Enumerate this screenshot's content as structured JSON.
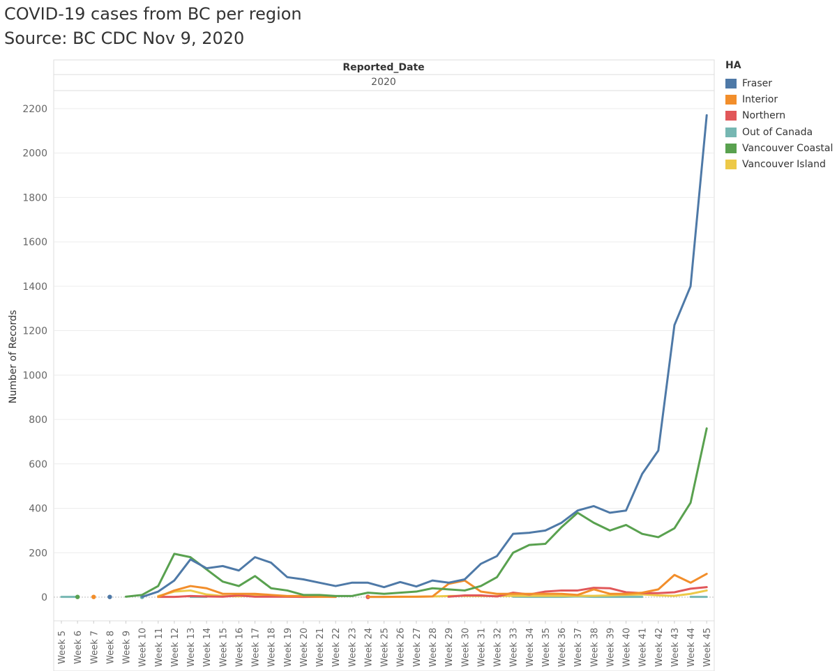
{
  "title": "COVID-19 cases from BC per region",
  "subtitle": "Source: BC CDC Nov 9, 2020",
  "chart_data": {
    "type": "line",
    "header_field": "Reported_Date",
    "header_value": "2020",
    "ylabel": "Number of Records",
    "ylim": [
      -110,
      2380
    ],
    "yticks": [
      0,
      200,
      400,
      600,
      800,
      1000,
      1200,
      1400,
      1600,
      1800,
      2000,
      2200
    ],
    "grid": true,
    "legend_title": "HA",
    "legend_position": "right",
    "categories": [
      "Week 5",
      "Week 6",
      "Week 7",
      "Week 8",
      "Week 9",
      "Week 10",
      "Week 11",
      "Week 12",
      "Week 13",
      "Week 14",
      "Week 15",
      "Week 16",
      "Week 17",
      "Week 18",
      "Week 19",
      "Week 20",
      "Week 21",
      "Week 22",
      "Week 23",
      "Week 24",
      "Week 25",
      "Week 26",
      "Week 27",
      "Week 28",
      "Week 29",
      "Week 30",
      "Week 31",
      "Week 32",
      "Week 33",
      "Week 34",
      "Week 35",
      "Week 36",
      "Week 37",
      "Week 38",
      "Week 39",
      "Week 40",
      "Week 41",
      "Week 42",
      "Week 43",
      "Week 44",
      "Week 45"
    ],
    "series": [
      {
        "name": "Out of Canada",
        "color": "#76b7b2",
        "values": [
          1,
          1,
          null,
          null,
          null,
          1,
          null,
          null,
          1,
          1,
          null,
          null,
          null,
          null,
          null,
          null,
          null,
          null,
          null,
          1,
          1,
          null,
          null,
          null,
          null,
          null,
          null,
          null,
          2,
          1,
          1,
          1,
          3,
          1,
          1,
          1,
          1,
          null,
          null,
          1,
          1
        ]
      },
      {
        "name": "Vancouver Island",
        "color": "#edc948",
        "values": [
          null,
          null,
          null,
          null,
          null,
          null,
          5,
          25,
          30,
          12,
          5,
          4,
          8,
          4,
          2,
          1,
          1,
          1,
          null,
          null,
          1,
          1,
          2,
          3,
          5,
          6,
          5,
          5,
          6,
          6,
          6,
          6,
          6,
          6,
          8,
          10,
          12,
          8,
          6,
          15,
          30
        ]
      },
      {
        "name": "Northern",
        "color": "#e15759",
        "values": [
          null,
          null,
          null,
          null,
          null,
          null,
          1,
          1,
          5,
          3,
          2,
          8,
          2,
          2,
          2,
          1,
          2,
          1,
          null,
          1,
          null,
          null,
          null,
          null,
          2,
          8,
          8,
          3,
          20,
          12,
          25,
          30,
          30,
          42,
          40,
          22,
          18,
          18,
          22,
          38,
          45
        ]
      },
      {
        "name": "Interior",
        "color": "#f28e2b",
        "values": [
          null,
          null,
          1,
          null,
          null,
          null,
          1,
          30,
          50,
          40,
          15,
          15,
          15,
          10,
          5,
          5,
          2,
          2,
          null,
          1,
          1,
          2,
          2,
          3,
          60,
          75,
          25,
          15,
          15,
          15,
          15,
          15,
          10,
          35,
          15,
          15,
          20,
          35,
          100,
          65,
          105
        ]
      },
      {
        "name": "Vancouver Coastal",
        "color": "#59a14f",
        "values": [
          null,
          1,
          null,
          null,
          2,
          10,
          50,
          195,
          180,
          125,
          70,
          50,
          95,
          40,
          30,
          10,
          10,
          5,
          5,
          20,
          15,
          20,
          25,
          40,
          35,
          30,
          50,
          90,
          200,
          235,
          240,
          315,
          380,
          335,
          300,
          325,
          285,
          270,
          310,
          425,
          760
        ]
      },
      {
        "name": "Fraser",
        "color": "#4e79a7",
        "values": [
          null,
          null,
          null,
          1,
          null,
          1,
          25,
          75,
          170,
          130,
          140,
          120,
          180,
          155,
          90,
          80,
          65,
          50,
          65,
          65,
          45,
          68,
          48,
          75,
          65,
          80,
          150,
          185,
          285,
          290,
          300,
          335,
          390,
          410,
          380,
          390,
          555,
          660,
          1225,
          1400,
          2170
        ]
      }
    ]
  }
}
